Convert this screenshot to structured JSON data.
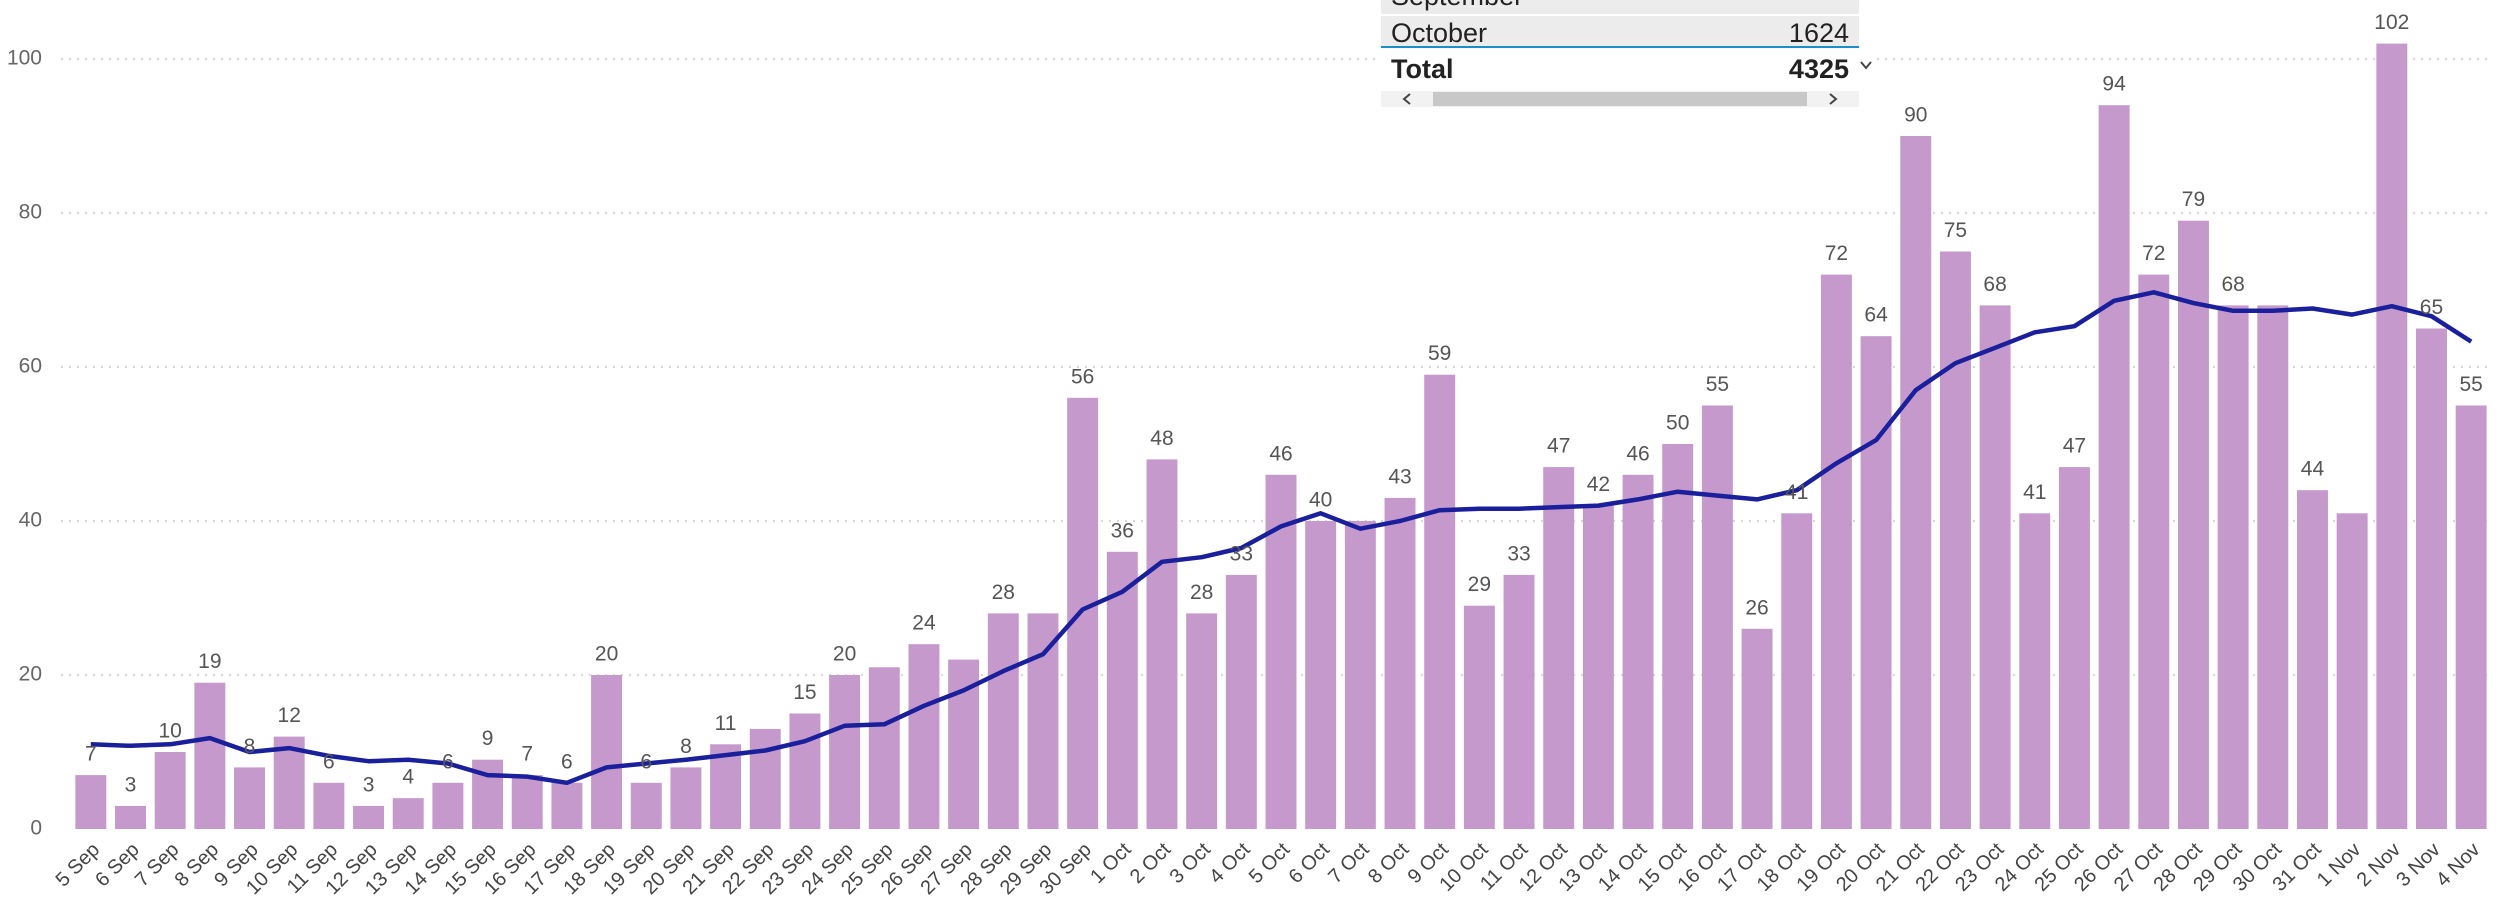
{
  "chart_data": {
    "type": "bar",
    "categories": [
      "5 Sep",
      "6 Sep",
      "7 Sep",
      "8 Sep",
      "9 Sep",
      "10 Sep",
      "11 Sep",
      "12 Sep",
      "13 Sep",
      "14 Sep",
      "15 Sep",
      "16 Sep",
      "17 Sep",
      "18 Sep",
      "19 Sep",
      "20 Sep",
      "21 Sep",
      "22 Sep",
      "23 Sep",
      "24 Sep",
      "25 Sep",
      "26 Sep",
      "27 Sep",
      "28 Sep",
      "29 Sep",
      "30 Sep",
      "1 Oct",
      "2 Oct",
      "3 Oct",
      "4 Oct",
      "5 Oct",
      "6 Oct",
      "7 Oct",
      "8 Oct",
      "9 Oct",
      "10 Oct",
      "11 Oct",
      "12 Oct",
      "13 Oct",
      "14 Oct",
      "15 Oct",
      "16 Oct",
      "17 Oct",
      "18 Oct",
      "19 Oct",
      "20 Oct",
      "21 Oct",
      "22 Oct",
      "23 Oct",
      "24 Oct",
      "25 Oct",
      "26 Oct",
      "27 Oct",
      "28 Oct",
      "29 Oct",
      "30 Oct",
      "31 Oct",
      "1 Nov",
      "2 Nov",
      "3 Nov",
      "4 Nov"
    ],
    "series": [
      {
        "type": "bar",
        "color": "#c599cc",
        "values": [
          7,
          3,
          10,
          19,
          8,
          12,
          6,
          3,
          4,
          6,
          9,
          7,
          6,
          20,
          6,
          8,
          11,
          13,
          15,
          20,
          21,
          24,
          22,
          28,
          28,
          56,
          36,
          48,
          28,
          33,
          46,
          40,
          40,
          43,
          59,
          29,
          33,
          47,
          42,
          46,
          50,
          55,
          26,
          41,
          72,
          64,
          90,
          75,
          68,
          41,
          47,
          94,
          72,
          79,
          68,
          68,
          44,
          41,
          102,
          65,
          55
        ],
        "value_labels": [
          "7",
          "3",
          "10",
          "19",
          "8",
          "12",
          "6",
          "3",
          "4",
          "6",
          "9",
          "7",
          "6",
          "20",
          "6",
          "8",
          "11",
          null,
          "15",
          "20",
          null,
          "24",
          null,
          "28",
          null,
          "56",
          "36",
          "48",
          "28",
          "33",
          "46",
          "40",
          null,
          "43",
          "59",
          "29",
          "33",
          "47",
          "42",
          "46",
          "50",
          "55",
          "26",
          "41",
          "72",
          "64",
          "90",
          "75",
          "68",
          "41",
          "47",
          "94",
          "72",
          "79",
          "68",
          null,
          "44",
          null,
          "102",
          "65",
          "55"
        ]
      },
      {
        "type": "line",
        "color": "#1a1f9c",
        "values": [
          11,
          10.8,
          11,
          11.8,
          10,
          10.5,
          9.5,
          8.8,
          9,
          8.5,
          7,
          6.8,
          6,
          8,
          8.5,
          9,
          9.6,
          10.2,
          11.4,
          13.4,
          13.6,
          16,
          18,
          20.5,
          22.7,
          28.5,
          30.8,
          34.7,
          35.3,
          36.5,
          39.3,
          41,
          39,
          40,
          41.4,
          41.6,
          41.6,
          41.8,
          42,
          42.8,
          43.8,
          43.3,
          42.8,
          44,
          47.5,
          50.5,
          57,
          60.5,
          62.5,
          64.5,
          65.3,
          68.6,
          69.7,
          68.3,
          67.3,
          67.3,
          67.6,
          66.8,
          67.9,
          66.6,
          63.3
        ]
      }
    ],
    "ylim": [
      0,
      100
    ],
    "yticks": [
      0,
      20,
      40,
      60,
      80,
      100
    ],
    "grid": true
  },
  "table": {
    "rows": [
      [
        "September"
      ],
      [
        "October",
        "1624"
      ]
    ],
    "total": [
      "Total",
      "4325"
    ]
  }
}
